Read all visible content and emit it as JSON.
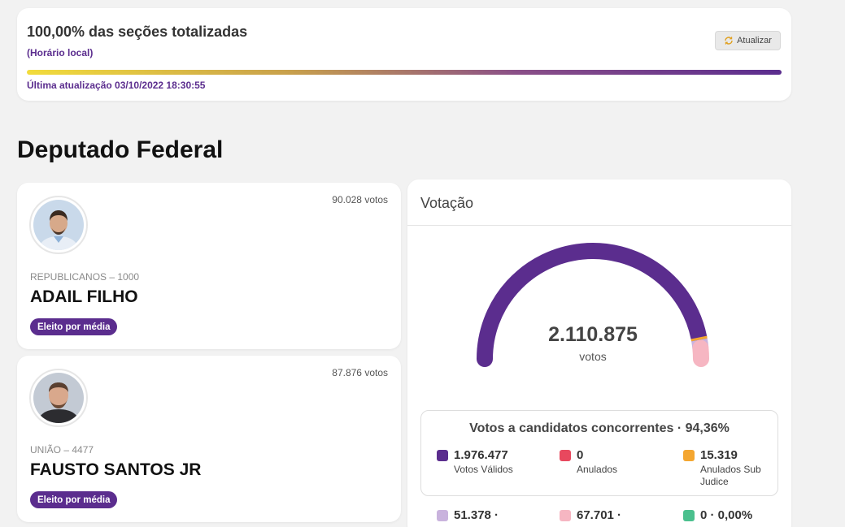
{
  "status": {
    "title": "100,00% das seções totalizadas",
    "subtitle": "(Horário local)",
    "refresh_label": "Atualizar",
    "progress": 1.0,
    "updated": "Última atualização 03/10/2022 18:30:55"
  },
  "section_title": "Deputado Federal",
  "candidates": [
    {
      "votes": "90.028 votos",
      "party": "REPUBLICANOS – 1000",
      "name": "ADAIL FILHO",
      "badge": "Eleito por média"
    },
    {
      "votes": "87.876 votos",
      "party": "UNIÃO – 4477",
      "name": "FAUSTO SANTOS JR",
      "badge": "Eleito por média"
    }
  ],
  "votacao": {
    "title": "Votação",
    "total": "2.110.875",
    "total_label": "votos",
    "summary_title": "Votos a candidatos concorrentes · 94,36%",
    "stats": [
      {
        "value": "1.976.477",
        "label": "Votos Válidos",
        "color": "#5b2d8e"
      },
      {
        "value": "0",
        "label": "Anulados",
        "color": "#e8485e"
      },
      {
        "value": "15.319",
        "label": "Anulados Sub Judice",
        "color": "#f4a630"
      }
    ],
    "stats_row2": [
      {
        "value": "51.378 ·",
        "color": "#c9b3dd"
      },
      {
        "value": "67.701 ·",
        "color": "#f6b6c2"
      },
      {
        "value": "0 · 0,00%",
        "color": "#4bc08e"
      }
    ],
    "gauge_colors": {
      "valid": "#5b2d8e",
      "sub_judice": "#f4a630",
      "blank": "#c9b3dd",
      "null": "#f6b6c2"
    }
  }
}
